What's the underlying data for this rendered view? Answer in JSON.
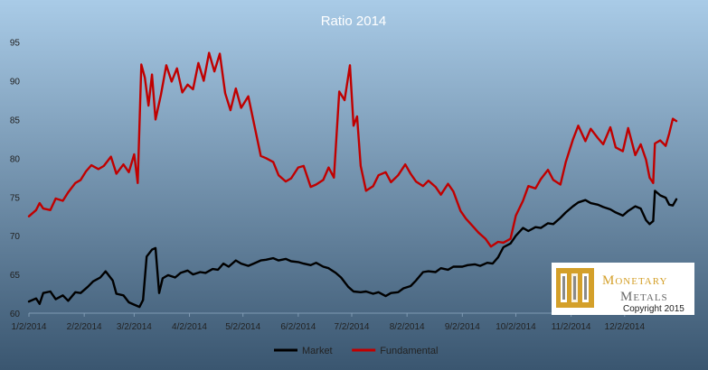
{
  "chart_data": {
    "type": "line",
    "title": "Ratio 2014",
    "xlabel": "",
    "ylabel": "",
    "x_tick_labels": [
      "1/2/2014",
      "2/2/2014",
      "3/2/2014",
      "4/2/2014",
      "5/2/2014",
      "6/2/2014",
      "7/2/2014",
      "8/2/2014",
      "9/2/2014",
      "10/2/2014",
      "11/2/2014",
      "12/2/2014"
    ],
    "y_ticks": [
      60,
      65,
      70,
      75,
      80,
      85,
      90,
      95
    ],
    "ylim": [
      60,
      96
    ],
    "xlim": [
      "2014-01-02",
      "2014-12-31"
    ],
    "grid": false,
    "legend_position": "bottom",
    "series": [
      {
        "name": "Market",
        "color": "#000000",
        "points": [
          [
            "2014-01-02",
            61.5
          ],
          [
            "2014-01-06",
            61.9
          ],
          [
            "2014-01-08",
            61.2
          ],
          [
            "2014-01-10",
            62.6
          ],
          [
            "2014-01-14",
            62.8
          ],
          [
            "2014-01-17",
            61.8
          ],
          [
            "2014-01-21",
            62.3
          ],
          [
            "2014-01-24",
            61.6
          ],
          [
            "2014-01-28",
            62.7
          ],
          [
            "2014-01-31",
            62.6
          ],
          [
            "2014-02-04",
            63.4
          ],
          [
            "2014-02-07",
            64.1
          ],
          [
            "2014-02-11",
            64.6
          ],
          [
            "2014-02-14",
            65.4
          ],
          [
            "2014-02-18",
            64.2
          ],
          [
            "2014-02-20",
            62.5
          ],
          [
            "2014-02-24",
            62.3
          ],
          [
            "2014-02-27",
            61.4
          ],
          [
            "2014-03-02",
            61.1
          ],
          [
            "2014-03-05",
            60.8
          ],
          [
            "2014-03-07",
            61.7
          ],
          [
            "2014-03-09",
            67.3
          ],
          [
            "2014-03-12",
            68.2
          ],
          [
            "2014-03-14",
            68.4
          ],
          [
            "2014-03-16",
            62.6
          ],
          [
            "2014-03-18",
            64.5
          ],
          [
            "2014-03-21",
            64.9
          ],
          [
            "2014-03-25",
            64.6
          ],
          [
            "2014-03-28",
            65.2
          ],
          [
            "2014-04-01",
            65.5
          ],
          [
            "2014-04-04",
            65.0
          ],
          [
            "2014-04-08",
            65.3
          ],
          [
            "2014-04-11",
            65.2
          ],
          [
            "2014-04-15",
            65.7
          ],
          [
            "2014-04-18",
            65.6
          ],
          [
            "2014-04-21",
            66.4
          ],
          [
            "2014-04-24",
            66.0
          ],
          [
            "2014-04-28",
            66.8
          ],
          [
            "2014-05-01",
            66.4
          ],
          [
            "2014-05-05",
            66.1
          ],
          [
            "2014-05-08",
            66.4
          ],
          [
            "2014-05-12",
            66.8
          ],
          [
            "2014-05-15",
            66.9
          ],
          [
            "2014-05-19",
            67.1
          ],
          [
            "2014-05-22",
            66.8
          ],
          [
            "2014-05-26",
            67.0
          ],
          [
            "2014-05-29",
            66.7
          ],
          [
            "2014-06-02",
            66.6
          ],
          [
            "2014-06-05",
            66.4
          ],
          [
            "2014-06-09",
            66.2
          ],
          [
            "2014-06-12",
            66.5
          ],
          [
            "2014-06-16",
            66.0
          ],
          [
            "2014-06-19",
            65.8
          ],
          [
            "2014-06-23",
            65.2
          ],
          [
            "2014-06-26",
            64.6
          ],
          [
            "2014-06-30",
            63.4
          ],
          [
            "2014-07-03",
            62.8
          ],
          [
            "2014-07-07",
            62.7
          ],
          [
            "2014-07-10",
            62.8
          ],
          [
            "2014-07-14",
            62.5
          ],
          [
            "2014-07-17",
            62.7
          ],
          [
            "2014-07-21",
            62.2
          ],
          [
            "2014-07-24",
            62.6
          ],
          [
            "2014-07-28",
            62.7
          ],
          [
            "2014-07-31",
            63.2
          ],
          [
            "2014-08-04",
            63.5
          ],
          [
            "2014-08-07",
            64.2
          ],
          [
            "2014-08-11",
            65.3
          ],
          [
            "2014-08-14",
            65.4
          ],
          [
            "2014-08-18",
            65.3
          ],
          [
            "2014-08-21",
            65.8
          ],
          [
            "2014-08-25",
            65.6
          ],
          [
            "2014-08-28",
            66.0
          ],
          [
            "2014-09-02",
            66.0
          ],
          [
            "2014-09-05",
            66.2
          ],
          [
            "2014-09-09",
            66.3
          ],
          [
            "2014-09-12",
            66.1
          ],
          [
            "2014-09-16",
            66.5
          ],
          [
            "2014-09-19",
            66.4
          ],
          [
            "2014-09-22",
            67.2
          ],
          [
            "2014-09-25",
            68.5
          ],
          [
            "2014-09-29",
            69.0
          ],
          [
            "2014-10-02",
            70.0
          ],
          [
            "2014-10-06",
            71.0
          ],
          [
            "2014-10-09",
            70.6
          ],
          [
            "2014-10-13",
            71.1
          ],
          [
            "2014-10-16",
            71.0
          ],
          [
            "2014-10-20",
            71.6
          ],
          [
            "2014-10-23",
            71.5
          ],
          [
            "2014-10-27",
            72.3
          ],
          [
            "2014-10-30",
            73.0
          ],
          [
            "2014-11-03",
            73.8
          ],
          [
            "2014-11-06",
            74.3
          ],
          [
            "2014-11-10",
            74.6
          ],
          [
            "2014-11-13",
            74.2
          ],
          [
            "2014-11-17",
            74.0
          ],
          [
            "2014-11-20",
            73.7
          ],
          [
            "2014-11-24",
            73.4
          ],
          [
            "2014-11-27",
            73.0
          ],
          [
            "2014-12-01",
            72.6
          ],
          [
            "2014-12-04",
            73.2
          ],
          [
            "2014-12-08",
            73.8
          ],
          [
            "2014-12-11",
            73.5
          ],
          [
            "2014-12-14",
            72.0
          ],
          [
            "2014-12-16",
            71.5
          ],
          [
            "2014-12-18",
            71.9
          ],
          [
            "2014-12-19",
            75.8
          ],
          [
            "2014-12-22",
            75.2
          ],
          [
            "2014-12-25",
            74.9
          ],
          [
            "2014-12-27",
            74.0
          ],
          [
            "2014-12-29",
            73.9
          ],
          [
            "2014-12-31",
            74.7
          ]
        ]
      },
      {
        "name": "Fundamental",
        "color": "#c00000",
        "points": [
          [
            "2014-01-02",
            72.5
          ],
          [
            "2014-01-06",
            73.3
          ],
          [
            "2014-01-08",
            74.2
          ],
          [
            "2014-01-10",
            73.5
          ],
          [
            "2014-01-14",
            73.3
          ],
          [
            "2014-01-17",
            74.8
          ],
          [
            "2014-01-21",
            74.5
          ],
          [
            "2014-01-24",
            75.6
          ],
          [
            "2014-01-28",
            76.8
          ],
          [
            "2014-01-31",
            77.2
          ],
          [
            "2014-02-03",
            78.3
          ],
          [
            "2014-02-06",
            79.1
          ],
          [
            "2014-02-10",
            78.6
          ],
          [
            "2014-02-13",
            79.0
          ],
          [
            "2014-02-17",
            80.2
          ],
          [
            "2014-02-20",
            78.0
          ],
          [
            "2014-02-24",
            79.2
          ],
          [
            "2014-02-27",
            78.2
          ],
          [
            "2014-03-02",
            80.5
          ],
          [
            "2014-03-04",
            76.8
          ],
          [
            "2014-03-06",
            92.1
          ],
          [
            "2014-03-08",
            90.4
          ],
          [
            "2014-03-10",
            86.8
          ],
          [
            "2014-03-12",
            90.8
          ],
          [
            "2014-03-14",
            85.0
          ],
          [
            "2014-03-17",
            88.2
          ],
          [
            "2014-03-20",
            92.0
          ],
          [
            "2014-03-23",
            89.9
          ],
          [
            "2014-03-26",
            91.6
          ],
          [
            "2014-03-29",
            88.5
          ],
          [
            "2014-04-01",
            89.5
          ],
          [
            "2014-04-04",
            88.9
          ],
          [
            "2014-04-07",
            92.3
          ],
          [
            "2014-04-10",
            90.0
          ],
          [
            "2014-04-13",
            93.6
          ],
          [
            "2014-04-16",
            91.2
          ],
          [
            "2014-04-19",
            93.5
          ],
          [
            "2014-04-22",
            88.4
          ],
          [
            "2014-04-25",
            86.2
          ],
          [
            "2014-04-28",
            89.0
          ],
          [
            "2014-05-01",
            86.5
          ],
          [
            "2014-05-05",
            88.0
          ],
          [
            "2014-05-08",
            84.7
          ],
          [
            "2014-05-12",
            80.3
          ],
          [
            "2014-05-15",
            80.0
          ],
          [
            "2014-05-19",
            79.5
          ],
          [
            "2014-05-22",
            77.8
          ],
          [
            "2014-05-26",
            77.0
          ],
          [
            "2014-05-29",
            77.4
          ],
          [
            "2014-06-02",
            78.8
          ],
          [
            "2014-06-05",
            79.0
          ],
          [
            "2014-06-09",
            76.3
          ],
          [
            "2014-06-12",
            76.6
          ],
          [
            "2014-06-16",
            77.2
          ],
          [
            "2014-06-19",
            78.8
          ],
          [
            "2014-06-22",
            77.5
          ],
          [
            "2014-06-25",
            88.6
          ],
          [
            "2014-06-28",
            87.5
          ],
          [
            "2014-07-01",
            92.0
          ],
          [
            "2014-07-03",
            84.2
          ],
          [
            "2014-07-05",
            85.4
          ],
          [
            "2014-07-07",
            79.0
          ],
          [
            "2014-07-10",
            75.8
          ],
          [
            "2014-07-14",
            76.4
          ],
          [
            "2014-07-17",
            77.8
          ],
          [
            "2014-07-21",
            78.2
          ],
          [
            "2014-07-24",
            76.9
          ],
          [
            "2014-07-28",
            77.8
          ],
          [
            "2014-08-01",
            79.2
          ],
          [
            "2014-08-04",
            78.0
          ],
          [
            "2014-08-07",
            77.0
          ],
          [
            "2014-08-11",
            76.4
          ],
          [
            "2014-08-14",
            77.1
          ],
          [
            "2014-08-18",
            76.3
          ],
          [
            "2014-08-21",
            75.3
          ],
          [
            "2014-08-25",
            76.7
          ],
          [
            "2014-08-28",
            75.7
          ],
          [
            "2014-09-01",
            73.2
          ],
          [
            "2014-09-04",
            72.2
          ],
          [
            "2014-09-08",
            71.2
          ],
          [
            "2014-09-11",
            70.4
          ],
          [
            "2014-09-15",
            69.6
          ],
          [
            "2014-09-18",
            68.6
          ],
          [
            "2014-09-22",
            69.2
          ],
          [
            "2014-09-25",
            69.1
          ],
          [
            "2014-09-29",
            69.6
          ],
          [
            "2014-10-02",
            72.6
          ],
          [
            "2014-10-06",
            74.5
          ],
          [
            "2014-10-09",
            76.4
          ],
          [
            "2014-10-13",
            76.1
          ],
          [
            "2014-10-16",
            77.3
          ],
          [
            "2014-10-20",
            78.5
          ],
          [
            "2014-10-23",
            77.2
          ],
          [
            "2014-10-27",
            76.6
          ],
          [
            "2014-10-30",
            79.5
          ],
          [
            "2014-11-03",
            82.4
          ],
          [
            "2014-11-06",
            84.2
          ],
          [
            "2014-11-10",
            82.2
          ],
          [
            "2014-11-13",
            83.8
          ],
          [
            "2014-11-17",
            82.6
          ],
          [
            "2014-11-20",
            81.8
          ],
          [
            "2014-11-24",
            84.0
          ],
          [
            "2014-11-27",
            81.4
          ],
          [
            "2014-12-01",
            80.9
          ],
          [
            "2014-12-04",
            83.9
          ],
          [
            "2014-12-08",
            80.4
          ],
          [
            "2014-12-11",
            81.8
          ],
          [
            "2014-12-14",
            79.8
          ],
          [
            "2014-12-16",
            77.5
          ],
          [
            "2014-12-18",
            76.8
          ],
          [
            "2014-12-19",
            81.9
          ],
          [
            "2014-12-22",
            82.3
          ],
          [
            "2014-12-25",
            81.6
          ],
          [
            "2014-12-27",
            83.2
          ],
          [
            "2014-12-29",
            85.1
          ],
          [
            "2014-12-31",
            84.8
          ]
        ]
      }
    ]
  },
  "logo": {
    "word1": "Monetary",
    "word2": "Metals",
    "copyright": "Copyright 2015",
    "colors": {
      "gold": "#d4a02a",
      "grey": "#8a8a8a",
      "dark": "#6a6a6a"
    }
  },
  "colors": {
    "bg_top": "#a9cbe7",
    "bg_bottom": "#3a5670"
  }
}
